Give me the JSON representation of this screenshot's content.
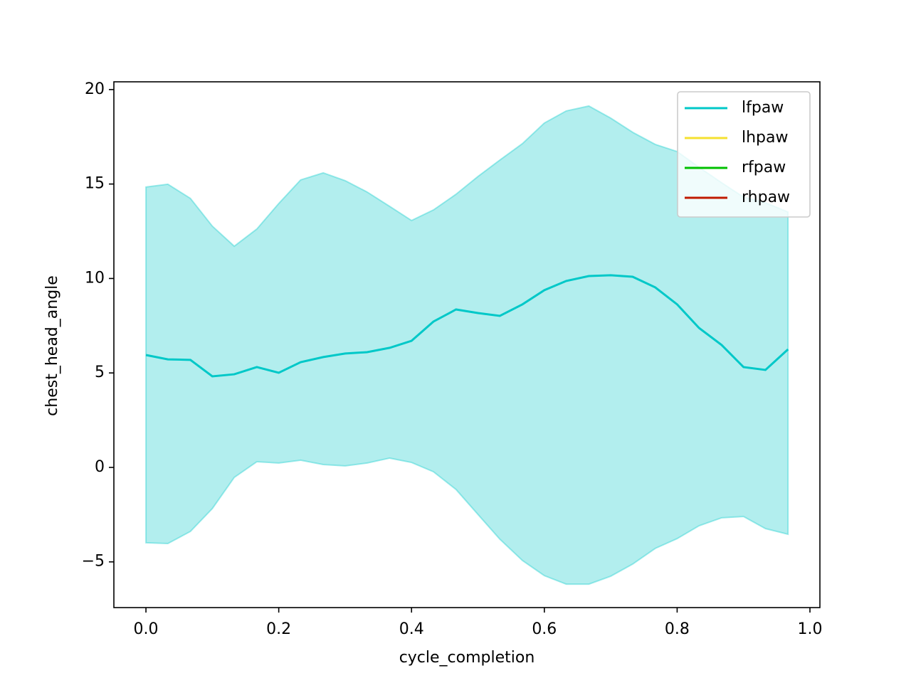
{
  "chart_data": {
    "type": "line",
    "xlabel": "cycle_completion",
    "ylabel": "chest_head_angle",
    "x": [
      0,
      0.033,
      0.067,
      0.1,
      0.133,
      0.167,
      0.2,
      0.233,
      0.267,
      0.3,
      0.333,
      0.367,
      0.4,
      0.433,
      0.467,
      0.5,
      0.533,
      0.567,
      0.6,
      0.633,
      0.667,
      0.7,
      0.733,
      0.767,
      0.8,
      0.833,
      0.867,
      0.9,
      0.933,
      0.967
    ],
    "series": [
      {
        "name": "lfpaw",
        "color": "#00c8c8",
        "values": [
          5.95,
          5.72,
          5.69,
          4.82,
          4.93,
          5.31,
          5.01,
          5.57,
          5.84,
          6.03,
          6.1,
          6.33,
          6.7,
          7.72,
          8.36,
          8.17,
          8.02,
          8.63,
          9.38,
          9.87,
          10.13,
          10.17,
          10.09,
          9.53,
          8.63,
          7.38,
          6.48,
          5.31,
          5.16,
          6.25
        ],
        "band_upper": [
          14.84,
          14.99,
          14.24,
          12.77,
          11.71,
          12.62,
          13.97,
          15.22,
          15.59,
          15.18,
          14.58,
          13.82,
          13.07,
          13.63,
          14.46,
          15.4,
          16.27,
          17.14,
          18.23,
          18.87,
          19.13,
          18.49,
          17.74,
          17.1,
          16.72,
          15.89,
          15.07,
          14.31,
          14.01,
          13.52
        ],
        "band_lower": [
          -3.99,
          -4.03,
          -3.39,
          -2.18,
          -0.53,
          0.3,
          0.23,
          0.38,
          0.15,
          0.08,
          0.23,
          0.49,
          0.26,
          -0.23,
          -1.17,
          -2.49,
          -3.8,
          -4.93,
          -5.73,
          -6.18,
          -6.18,
          -5.76,
          -5.12,
          -4.29,
          -3.77,
          -3.09,
          -2.67,
          -2.6,
          -3.24,
          -3.54
        ]
      },
      {
        "name": "lhpaw",
        "color": "#f5e030",
        "values": [
          null,
          null,
          null,
          null,
          null,
          null,
          null,
          null,
          null,
          null,
          null,
          null,
          null,
          null,
          null,
          null,
          null,
          null,
          null,
          null,
          null,
          null,
          null,
          null,
          null,
          null,
          null,
          null,
          null,
          null
        ]
      },
      {
        "name": "rfpaw",
        "color": "#00c000",
        "values": [
          null,
          null,
          null,
          null,
          null,
          null,
          null,
          null,
          null,
          null,
          null,
          null,
          null,
          null,
          null,
          null,
          null,
          null,
          null,
          null,
          null,
          null,
          null,
          null,
          null,
          null,
          null,
          null,
          null,
          null
        ]
      },
      {
        "name": "rhpaw",
        "color": "#c01a00",
        "values": [
          null,
          null,
          null,
          null,
          null,
          null,
          null,
          null,
          null,
          null,
          null,
          null,
          null,
          null,
          null,
          null,
          null,
          null,
          null,
          null,
          null,
          null,
          null,
          null,
          null,
          null,
          null,
          null,
          null,
          null
        ]
      }
    ],
    "xlim": [
      -0.0483,
      1.015
    ],
    "ylim": [
      -7.42,
      20.41
    ],
    "xticks": [
      {
        "value": 0,
        "label": "0.0"
      },
      0.2,
      0.4,
      0.6,
      0.8,
      {
        "value": 1,
        "label": "1.0"
      }
    ],
    "yticks": [
      {
        "value": -5,
        "label": "−5"
      },
      0,
      5,
      10,
      15,
      20
    ],
    "legend": "upper right",
    "grid": false
  }
}
